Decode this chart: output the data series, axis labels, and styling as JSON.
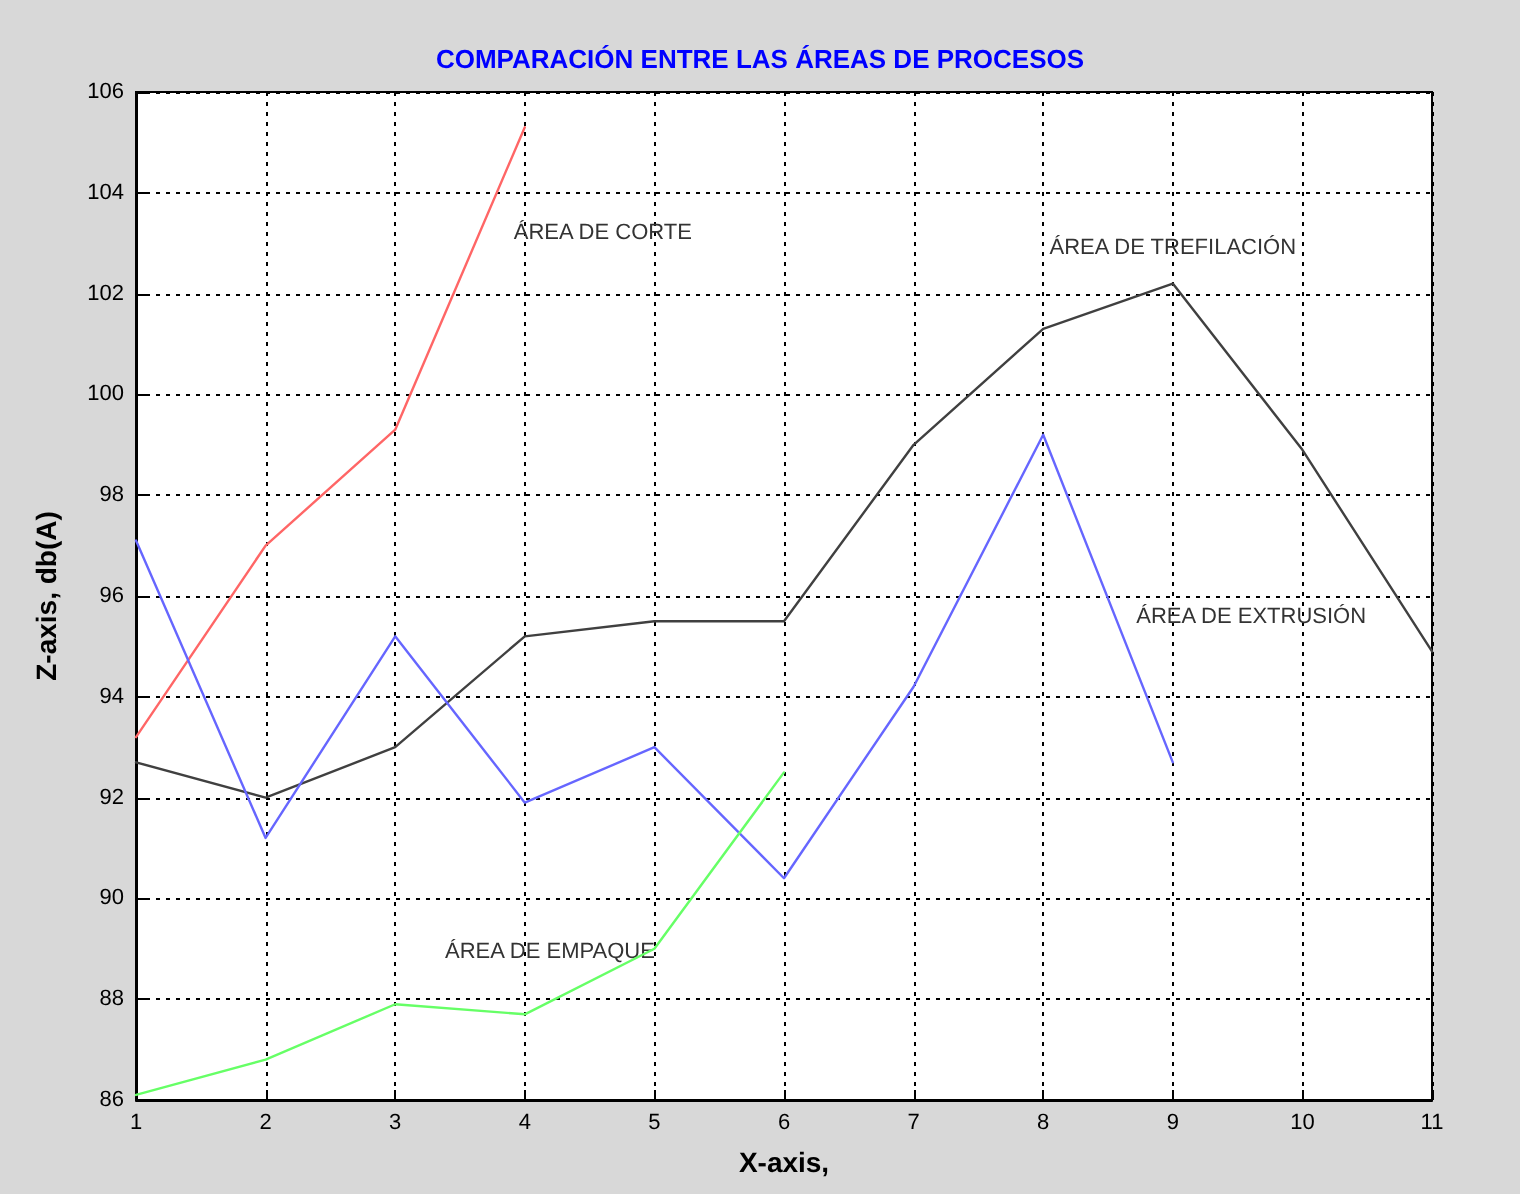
{
  "chart_data": {
    "type": "line",
    "title": "COMPARACIÓN ENTRE LAS ÁREAS DE PROCESOS",
    "xlabel": "X-axis,",
    "ylabel": "Z-axis, db(A)",
    "series": [
      {
        "name": "ÁREA DE CORTE",
        "color": "#ff6666",
        "x": [
          1,
          2,
          3,
          4
        ],
        "values": [
          93.2,
          97.0,
          99.3,
          105.3
        ]
      },
      {
        "name": "ÁREA DE TREFILACIÓN",
        "color": "#404040",
        "x": [
          1,
          2,
          3,
          4,
          5,
          6,
          7,
          8,
          9,
          10,
          11
        ],
        "values": [
          92.7,
          92.0,
          93.0,
          95.2,
          95.5,
          95.5,
          99.0,
          101.3,
          102.2,
          98.9,
          94.9
        ]
      },
      {
        "name": "ÁREA DE EXTRUSIÓN",
        "color": "#6666ff",
        "x": [
          1,
          2,
          3,
          4,
          5,
          6,
          7,
          8,
          9
        ],
        "values": [
          97.1,
          91.2,
          95.2,
          91.9,
          93.0,
          90.4,
          94.2,
          99.2,
          92.7
        ]
      },
      {
        "name": "ÁREA DE EMPAQUE",
        "color": "#66ff66",
        "x": [
          1,
          2,
          3,
          4,
          5,
          6
        ],
        "values": [
          86.1,
          86.8,
          87.9,
          87.7,
          89.0,
          92.5
        ]
      }
    ],
    "xlim": [
      1,
      11
    ],
    "xticks": [
      1,
      2,
      3,
      4,
      5,
      6,
      7,
      8,
      9,
      10,
      11
    ],
    "ylim": [
      86,
      106
    ],
    "yticks": [
      86,
      88,
      90,
      92,
      94,
      96,
      98,
      100,
      102,
      104,
      106
    ],
    "grid": true,
    "legend": false,
    "marker": "none",
    "line_style": "solid"
  }
}
